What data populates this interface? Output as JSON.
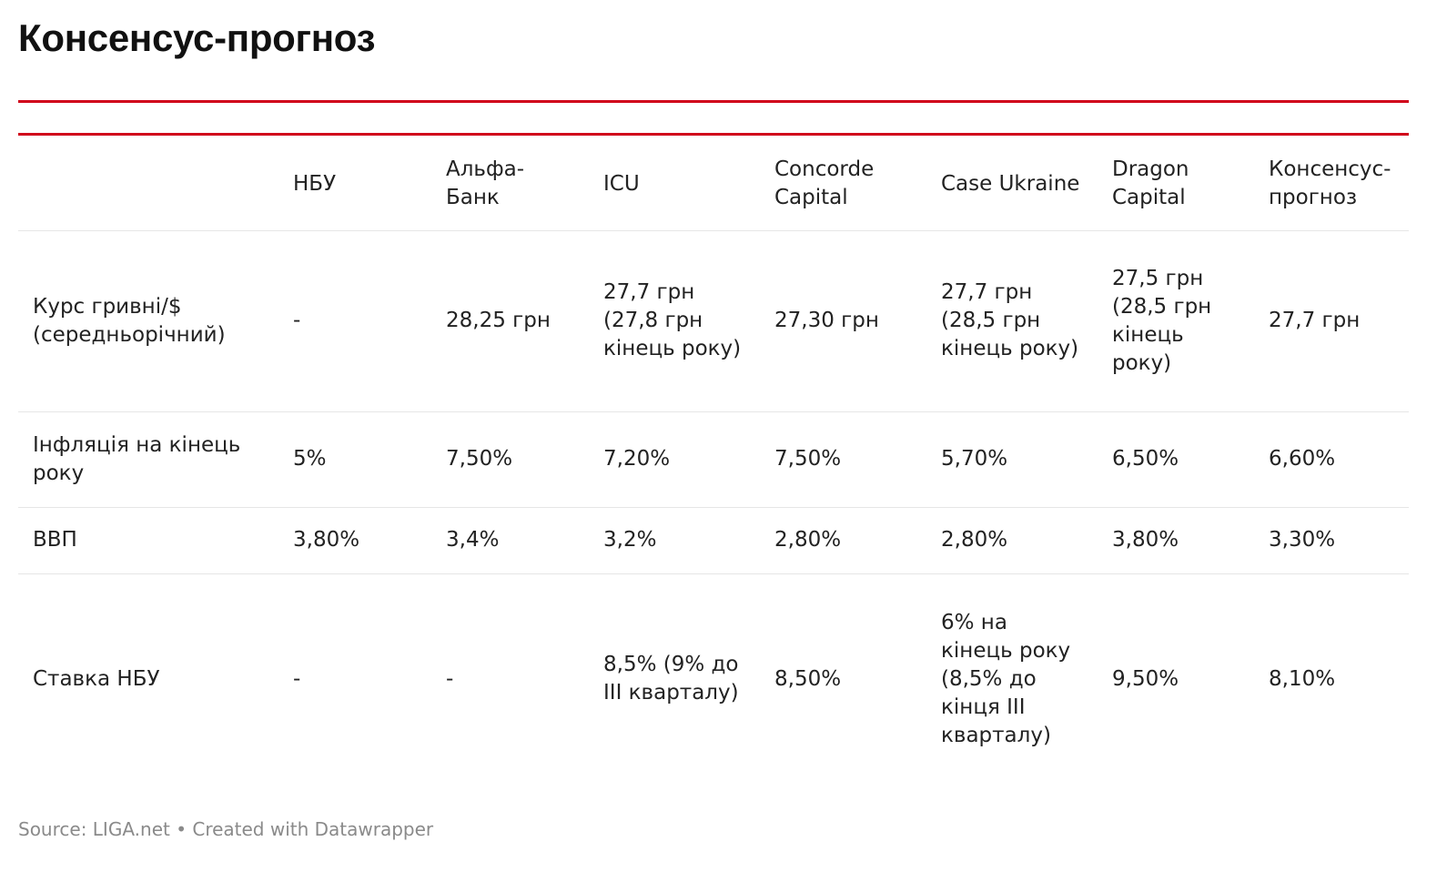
{
  "title": "Консенсус-прогноз",
  "chart_data": {
    "type": "table",
    "columns": [
      "",
      "НБУ",
      "Альфа-Банк",
      "ICU",
      "Concorde Capital",
      "Case Ukraine",
      "Dragon Capital",
      "Консенсус-прогноз"
    ],
    "rows": [
      [
        "Курс гривні/$ (середньорічний)",
        "-",
        "28,25 грн",
        "27,7 грн (27,8 грн кінець року)",
        "27,30 грн",
        "27,7 грн (28,5 грн кінець року)",
        "27,5 грн (28,5 грн кінець року)",
        "27,7 грн"
      ],
      [
        "Інфляція на кінець року",
        "5%",
        "7,50%",
        "7,20%",
        "7,50%",
        "5,70%",
        "6,50%",
        "6,60%"
      ],
      [
        "ВВП",
        "3,80%",
        "3,4%",
        "3,2%",
        "2,80%",
        "2,80%",
        "3,80%",
        "3,30%"
      ],
      [
        "Ставка НБУ",
        "-",
        "-",
        "8,5% (9% до III кварталу)",
        "8,50%",
        "6% на кінець року (8,5% до кінця III кварталу)",
        "9,50%",
        "8,10%"
      ]
    ]
  },
  "footer": "Source: LIGA.net • Created with Datawrapper",
  "colors": {
    "accent_rule": "#d0021b",
    "divider": "#e6e6e6",
    "footer_text": "#8a8a8a"
  }
}
